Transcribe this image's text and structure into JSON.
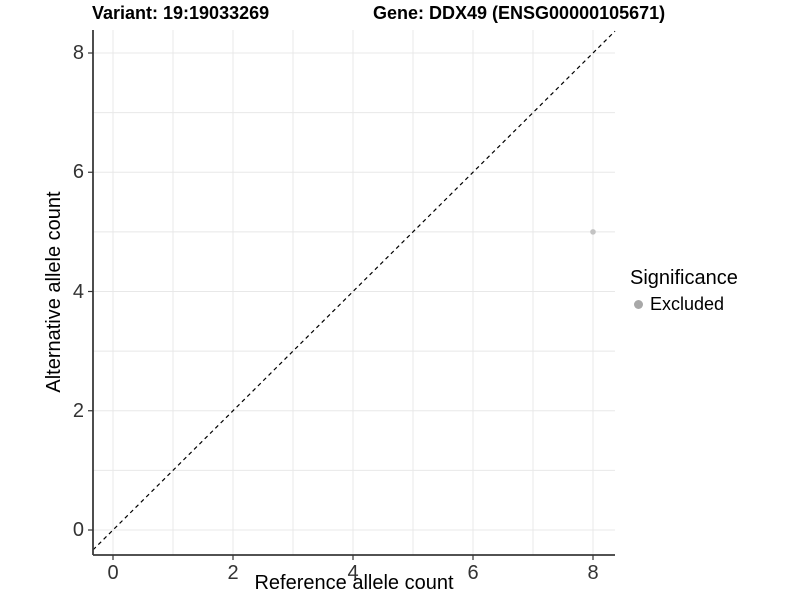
{
  "chart_data": {
    "type": "scatter",
    "title_left": "Variant: 19:19033269",
    "title_right": "Gene: DDX49 (ENSG00000105671)",
    "xlabel": "Reference allele count",
    "ylabel": "Alternative allele count",
    "x_ticks": [
      0,
      2,
      4,
      6,
      8
    ],
    "y_ticks": [
      0,
      2,
      4,
      6,
      8
    ],
    "xlim": [
      -0.33,
      8.37
    ],
    "ylim": [
      -0.42,
      8.39
    ],
    "grid": true,
    "grid_every": 1,
    "reference_line": {
      "kind": "identity y=x",
      "style": "dashed",
      "color": "#000000"
    },
    "points": [
      {
        "x": 8,
        "y": 5,
        "series": "Excluded",
        "color": "#c3c3c3"
      }
    ],
    "legend": {
      "title": "Significance",
      "position": "right",
      "items": [
        {
          "label": "Excluded",
          "color": "#a8a8a8"
        }
      ]
    }
  },
  "colors": {
    "background": "#ffffff",
    "grid": "#e8e8e8",
    "axis_line": "#3a3a3a",
    "tick_mark": "#333333",
    "tick_text": "#333333",
    "point": "#c3c3c3",
    "legend_key": "#a8a8a8",
    "dashed_line": "#000000"
  }
}
